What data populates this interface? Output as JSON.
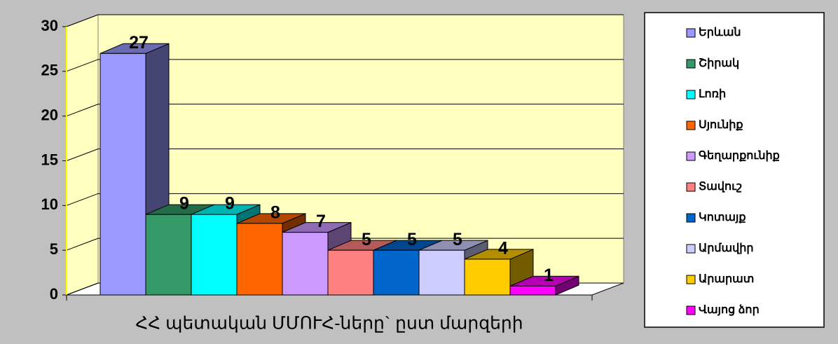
{
  "chart_data": {
    "type": "bar3d",
    "categories": [
      "ՀՀ պետական ՄՄՈՒՀ-ները` ըստ մարզերի"
    ],
    "series": [
      {
        "name": "Երևան",
        "color": "#9999ff",
        "values": [
          27
        ]
      },
      {
        "name": "Շիրակ",
        "color": "#339966",
        "values": [
          9
        ]
      },
      {
        "name": "Լոռի",
        "color": "#00ffff",
        "values": [
          9
        ]
      },
      {
        "name": "Սյունիք",
        "color": "#ff6600",
        "values": [
          8
        ]
      },
      {
        "name": "Գեղարքունիք",
        "color": "#cc99ff",
        "values": [
          7
        ]
      },
      {
        "name": "Տավուշ",
        "color": "#ff8080",
        "values": [
          5
        ]
      },
      {
        "name": "Կոտայք",
        "color": "#0066cc",
        "values": [
          5
        ]
      },
      {
        "name": "Արմավիր",
        "color": "#ccccff",
        "values": [
          5
        ]
      },
      {
        "name": "Արարատ",
        "color": "#ffcc00",
        "values": [
          4
        ]
      },
      {
        "name": "Վայոց ձոր",
        "color": "#ff00ff",
        "values": [
          1
        ]
      }
    ],
    "ylim": [
      0,
      30
    ],
    "yticks": [
      0,
      5,
      10,
      15,
      20,
      25,
      30
    ],
    "grid": true,
    "legend": "right"
  }
}
